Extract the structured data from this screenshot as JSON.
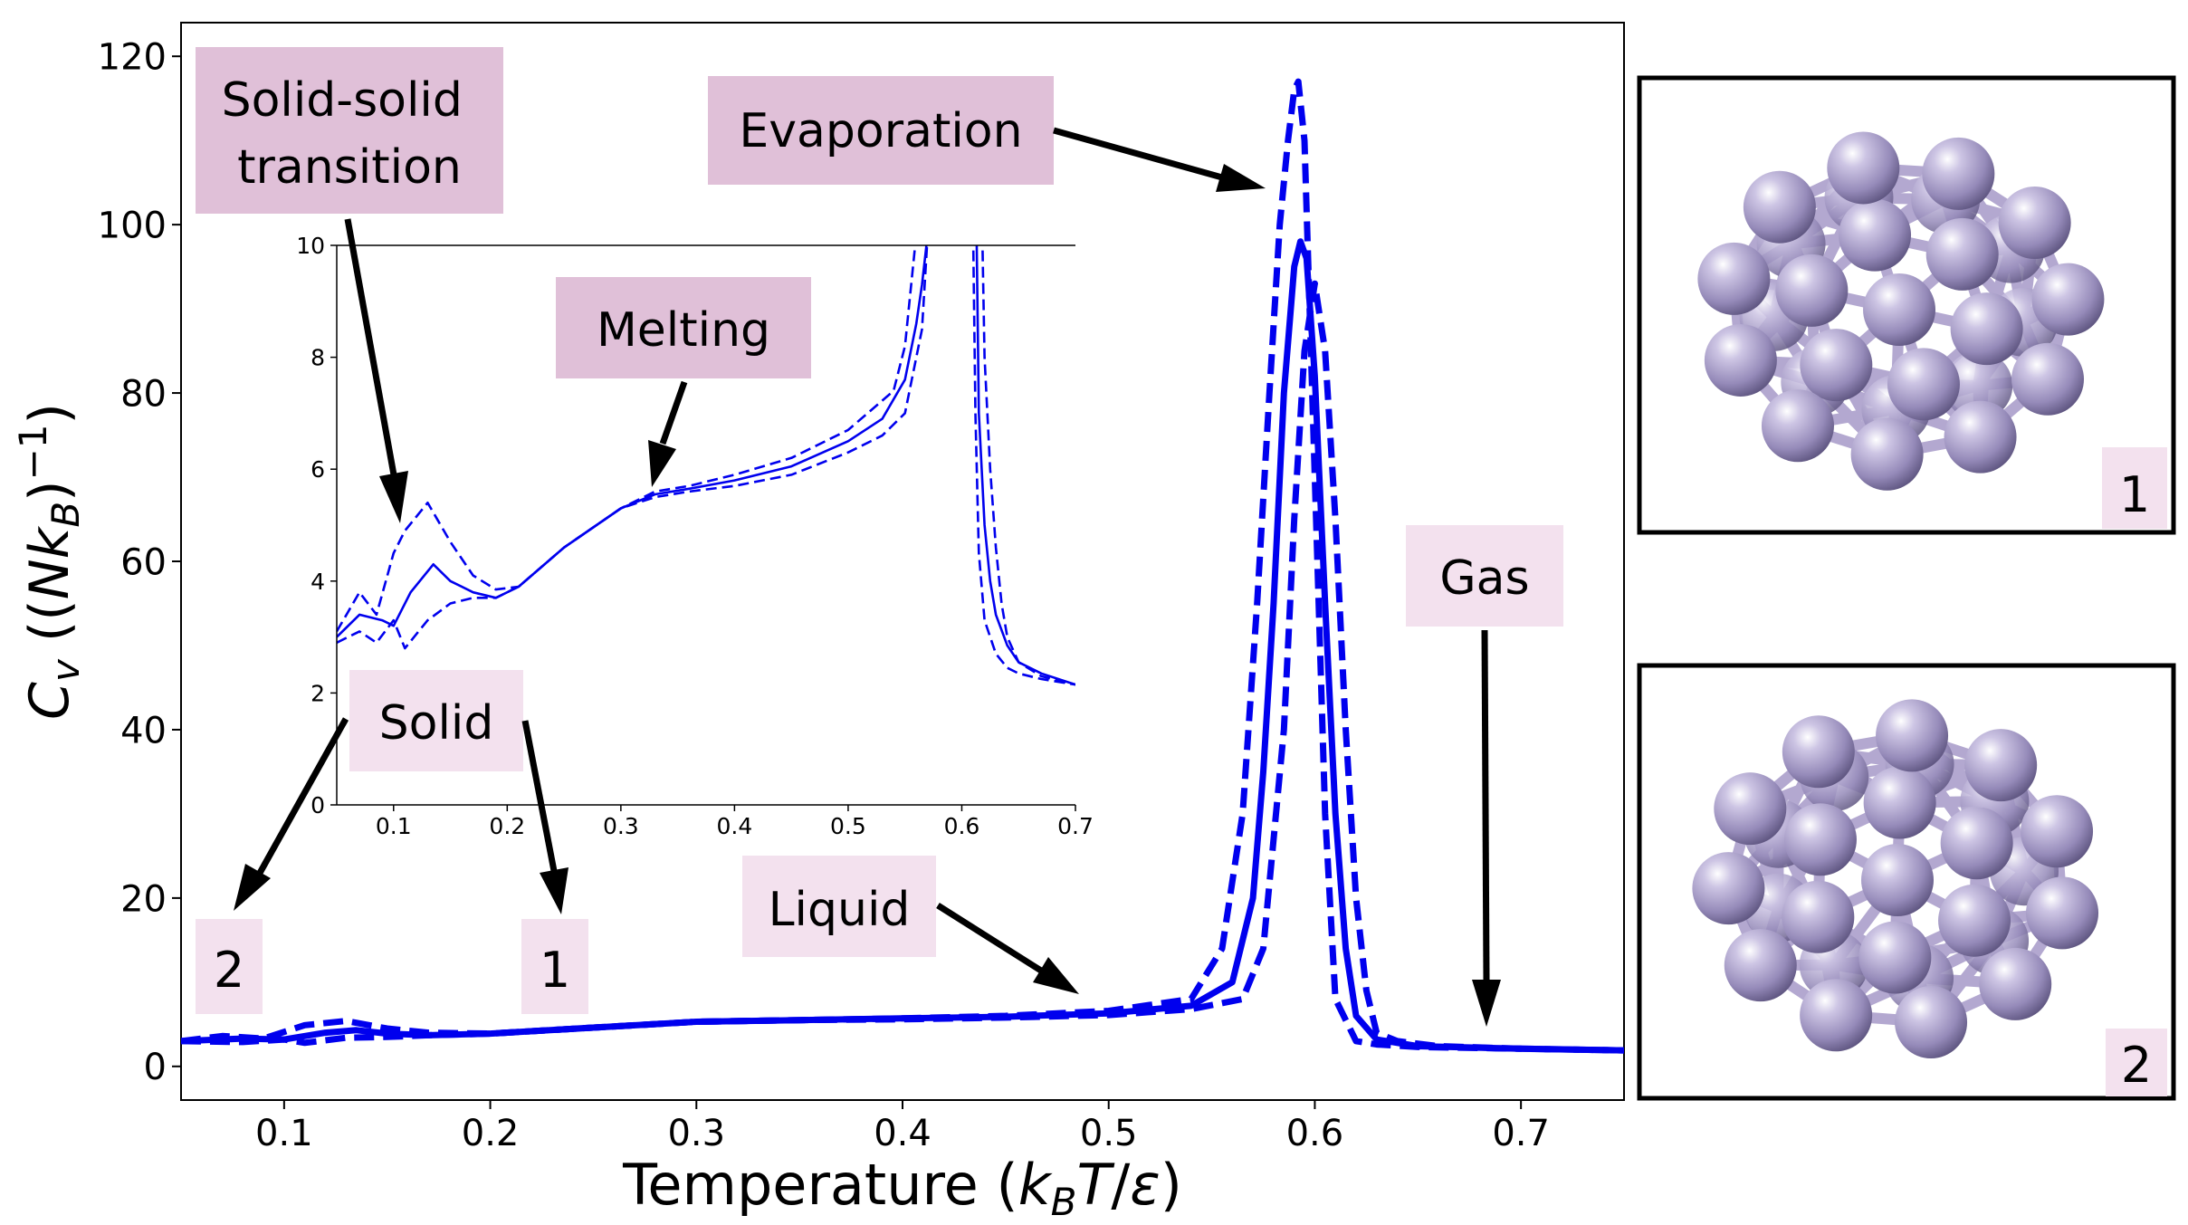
{
  "chart_data": [
    {
      "type": "line",
      "xlabel": "Temperature (k_BT/ε)",
      "ylabel": "C_v ((Nk_B)^-1)",
      "xlim": [
        0.05,
        0.75
      ],
      "ylim": [
        -4,
        124
      ],
      "x_ticks": [
        "0.1",
        "0.2",
        "0.3",
        "0.4",
        "0.5",
        "0.6",
        "0.7"
      ],
      "y_ticks": [
        "0",
        "20",
        "40",
        "60",
        "80",
        "100",
        "120"
      ],
      "grid": false,
      "series": [
        {
          "style": "solid",
          "color": "#0000ee",
          "x": [
            0.05,
            0.08,
            0.1,
            0.12,
            0.135,
            0.15,
            0.17,
            0.2,
            0.25,
            0.3,
            0.35,
            0.4,
            0.45,
            0.5,
            0.54,
            0.56,
            0.57,
            0.575,
            0.58,
            0.585,
            0.59,
            0.593,
            0.596,
            0.6,
            0.605,
            0.61,
            0.615,
            0.62,
            0.63,
            0.65,
            0.7,
            0.75
          ],
          "y": [
            3.0,
            3.3,
            3.2,
            4.0,
            4.3,
            3.9,
            3.7,
            3.9,
            4.6,
            5.3,
            5.5,
            5.7,
            5.9,
            6.3,
            7.2,
            10,
            20,
            35,
            55,
            80,
            95,
            98,
            96,
            82,
            55,
            30,
            14,
            6,
            3.2,
            2.4,
            2.1,
            1.9
          ]
        },
        {
          "style": "dashed",
          "color": "#0000ee",
          "x": [
            0.05,
            0.07,
            0.09,
            0.11,
            0.13,
            0.15,
            0.17,
            0.2,
            0.25,
            0.3,
            0.35,
            0.4,
            0.45,
            0.5,
            0.54,
            0.555,
            0.565,
            0.572,
            0.578,
            0.583,
            0.587,
            0.59,
            0.592,
            0.595,
            0.6,
            0.605,
            0.61,
            0.62,
            0.63,
            0.65,
            0.7,
            0.75
          ],
          "y": [
            3.0,
            3.6,
            3.3,
            4.9,
            5.4,
            4.5,
            4.0,
            3.9,
            4.6,
            5.3,
            5.5,
            5.7,
            6.0,
            6.6,
            8.0,
            14,
            30,
            55,
            80,
            100,
            110,
            116,
            117,
            110,
            70,
            30,
            8,
            3.0,
            2.6,
            2.3,
            2.1,
            1.9
          ]
        },
        {
          "style": "dashed",
          "color": "#0000ee",
          "x": [
            0.05,
            0.08,
            0.1,
            0.11,
            0.13,
            0.15,
            0.17,
            0.2,
            0.25,
            0.3,
            0.35,
            0.4,
            0.45,
            0.5,
            0.54,
            0.565,
            0.575,
            0.585,
            0.59,
            0.595,
            0.6,
            0.605,
            0.61,
            0.615,
            0.62,
            0.625,
            0.63,
            0.64,
            0.66,
            0.7,
            0.75
          ],
          "y": [
            3.0,
            2.9,
            3.2,
            2.8,
            3.4,
            3.5,
            3.7,
            3.9,
            4.6,
            5.3,
            5.5,
            5.6,
            5.8,
            6.1,
            6.8,
            8,
            14,
            40,
            65,
            85,
            93,
            85,
            65,
            40,
            20,
            9,
            4,
            3.0,
            2.4,
            2.1,
            1.9
          ]
        }
      ]
    },
    {
      "type": "line",
      "xlim": [
        0.05,
        0.7
      ],
      "ylim": [
        0,
        10
      ],
      "x_ticks": [
        "0.1",
        "0.2",
        "0.3",
        "0.4",
        "0.5",
        "0.6",
        "0.7"
      ],
      "y_ticks": [
        "0",
        "2",
        "4",
        "6",
        "8",
        "10"
      ],
      "grid": false,
      "series": [
        {
          "style": "solid",
          "color": "#0000ee",
          "x": [
            0.05,
            0.07,
            0.09,
            0.1,
            0.115,
            0.135,
            0.15,
            0.17,
            0.19,
            0.21,
            0.25,
            0.3,
            0.33,
            0.36,
            0.4,
            0.45,
            0.5,
            0.53,
            0.55,
            0.56,
            0.565,
            0.57
          ],
          "y": [
            3.0,
            3.4,
            3.3,
            3.2,
            3.8,
            4.3,
            4.0,
            3.8,
            3.7,
            3.9,
            4.6,
            5.3,
            5.55,
            5.65,
            5.8,
            6.05,
            6.5,
            6.9,
            7.6,
            8.6,
            9.3,
            10.2
          ]
        },
        {
          "style": "solid",
          "color": "#0000ee",
          "x": [
            0.613,
            0.615,
            0.62,
            0.625,
            0.63,
            0.64,
            0.65,
            0.67,
            0.7
          ],
          "y": [
            10.2,
            7.0,
            5.0,
            4.0,
            3.4,
            2.85,
            2.55,
            2.35,
            2.15
          ]
        },
        {
          "style": "dashed",
          "color": "#0000ee",
          "x": [
            0.05,
            0.07,
            0.085,
            0.1,
            0.11,
            0.13,
            0.15,
            0.17,
            0.19,
            0.21,
            0.25,
            0.3,
            0.33,
            0.36,
            0.4,
            0.45,
            0.5,
            0.54,
            0.55,
            0.56
          ],
          "y": [
            3.1,
            3.8,
            3.4,
            4.5,
            4.9,
            5.4,
            4.7,
            4.1,
            3.85,
            3.9,
            4.6,
            5.3,
            5.6,
            5.7,
            5.9,
            6.2,
            6.7,
            7.4,
            8.2,
            10.2
          ]
        },
        {
          "style": "dashed",
          "color": "#0000ee",
          "x": [
            0.61,
            0.612,
            0.615,
            0.62,
            0.63,
            0.64,
            0.65,
            0.67,
            0.7
          ],
          "y": [
            10.2,
            7.0,
            4.5,
            3.3,
            2.7,
            2.45,
            2.35,
            2.25,
            2.15
          ]
        },
        {
          "style": "dashed",
          "color": "#0000ee",
          "x": [
            0.05,
            0.07,
            0.085,
            0.1,
            0.11,
            0.13,
            0.15,
            0.17,
            0.19,
            0.21,
            0.25,
            0.3,
            0.33,
            0.36,
            0.4,
            0.45,
            0.5,
            0.53,
            0.55,
            0.565,
            0.57
          ],
          "y": [
            2.9,
            3.1,
            2.9,
            3.3,
            2.8,
            3.3,
            3.6,
            3.7,
            3.7,
            3.9,
            4.6,
            5.3,
            5.5,
            5.6,
            5.7,
            5.9,
            6.3,
            6.6,
            7.0,
            8.5,
            10.2
          ]
        },
        {
          "style": "dashed",
          "color": "#0000ee",
          "x": [
            0.618,
            0.62,
            0.625,
            0.63,
            0.635,
            0.64,
            0.65,
            0.67,
            0.7
          ],
          "y": [
            10.2,
            8.0,
            6.0,
            4.6,
            3.6,
            3.0,
            2.55,
            2.3,
            2.15
          ]
        }
      ]
    }
  ],
  "annotations": {
    "solid_solid": "Solid-solid\ntransition",
    "evaporation": "Evaporation",
    "melting": "Melting",
    "solid": "Solid",
    "liquid": "Liquid",
    "gas": "Gas",
    "marker_2": "2",
    "marker_1": "1"
  },
  "structures": [
    {
      "label": "1"
    },
    {
      "label": "2"
    }
  ],
  "colors": {
    "line": "#0000ee",
    "label_box_dark": "#e0c0d8",
    "label_box_light": "#f3e1ee",
    "atom": "#9a8fbe",
    "bond": "#b3a8d0"
  }
}
